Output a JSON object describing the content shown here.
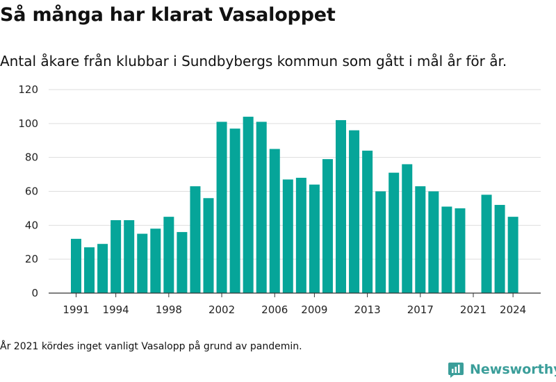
{
  "chart_data": {
    "type": "bar",
    "title": "Så många har klarat Vasaloppet",
    "subtitle": "Antal åkare från klubbar i Sundbybergs kommun som gått i mål år för år.",
    "note": "År 2021 kördes inget vanligt Vasalopp på grund av pandemin.",
    "x": [
      1991,
      1992,
      1993,
      1994,
      1995,
      1996,
      1997,
      1998,
      1999,
      2000,
      2001,
      2002,
      2003,
      2004,
      2005,
      2006,
      2007,
      2008,
      2009,
      2010,
      2011,
      2012,
      2013,
      2014,
      2015,
      2016,
      2017,
      2018,
      2019,
      2020,
      2021,
      2022,
      2023,
      2024
    ],
    "values": [
      32,
      27,
      29,
      43,
      43,
      35,
      38,
      45,
      36,
      63,
      56,
      101,
      97,
      104,
      101,
      85,
      67,
      68,
      64,
      79,
      102,
      96,
      84,
      60,
      71,
      76,
      63,
      60,
      51,
      50,
      null,
      58,
      52,
      45
    ],
    "x_ticks": [
      "1991",
      "1994",
      "1998",
      "2002",
      "2006",
      "2009",
      "2013",
      "2017",
      "2021",
      "2024"
    ],
    "y_ticks": [
      "0",
      "20",
      "40",
      "60",
      "80",
      "100",
      "120"
    ],
    "ylim": [
      0,
      120
    ],
    "grid": "horizontal",
    "bar_color": "#06a599",
    "xlabel": "",
    "ylabel": ""
  },
  "brand": {
    "name": "Newsworthy",
    "logo_icon": "newsworthy-logo-icon",
    "color": "#3b9e9a"
  }
}
